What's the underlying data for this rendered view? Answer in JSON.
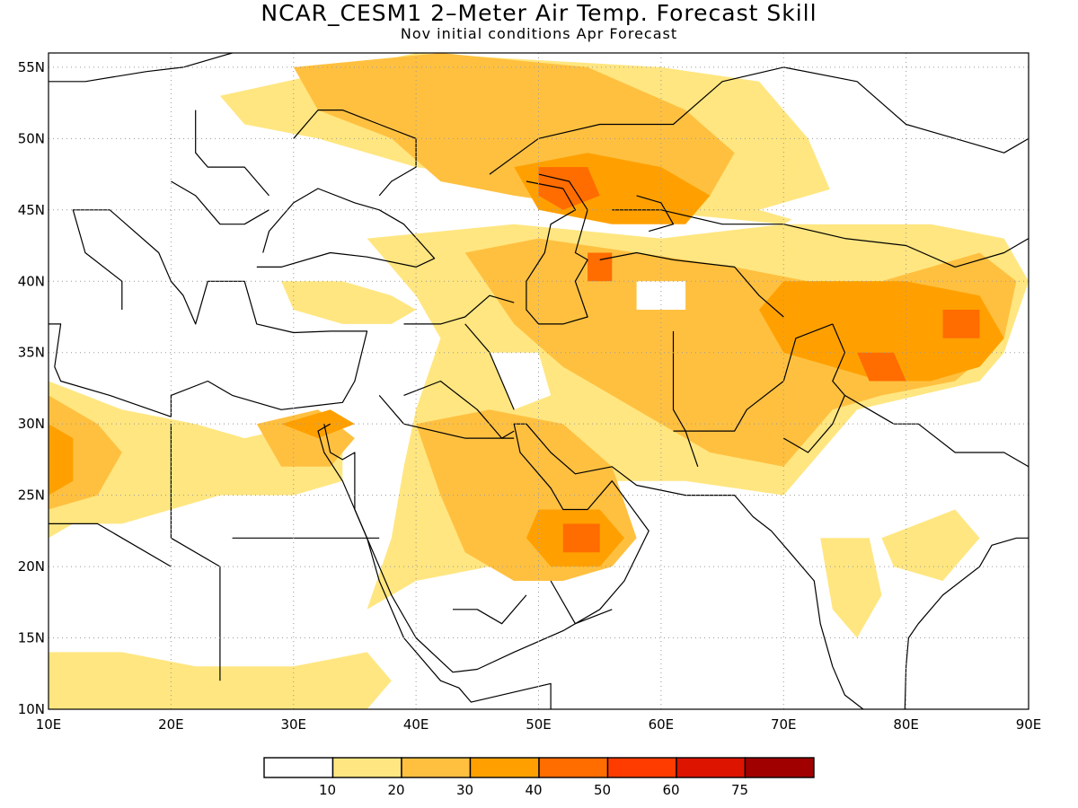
{
  "title": "NCAR_CESM1 2–Meter Air Temp. Forecast Skill",
  "subtitle": "Nov initial conditions  Apr Forecast",
  "chart_data": {
    "type": "heatmap",
    "variable": "2-Meter Air Temp. Forecast Skill",
    "model": "NCAR_CESM1",
    "initial_conditions": "Nov",
    "forecast_month": "Apr",
    "lon_range": [
      10,
      90
    ],
    "lat_range": [
      10,
      56
    ],
    "x_tick_labels": [
      "10E",
      "20E",
      "30E",
      "40E",
      "50E",
      "60E",
      "70E",
      "80E",
      "90E"
    ],
    "y_tick_labels": [
      "10N",
      "15N",
      "20N",
      "25N",
      "30N",
      "35N",
      "40N",
      "45N",
      "50N",
      "55N"
    ],
    "grid": "dotted",
    "colorbar": {
      "placement": "bottom",
      "tick_labels": [
        "10",
        "20",
        "30",
        "40",
        "50",
        "60",
        "75"
      ],
      "colors": [
        "#ffffff",
        "#ffe680",
        "#ffc040",
        "#ffa000",
        "#ff6c00",
        "#ff3c00",
        "#dc1400",
        "#a00000"
      ]
    }
  }
}
